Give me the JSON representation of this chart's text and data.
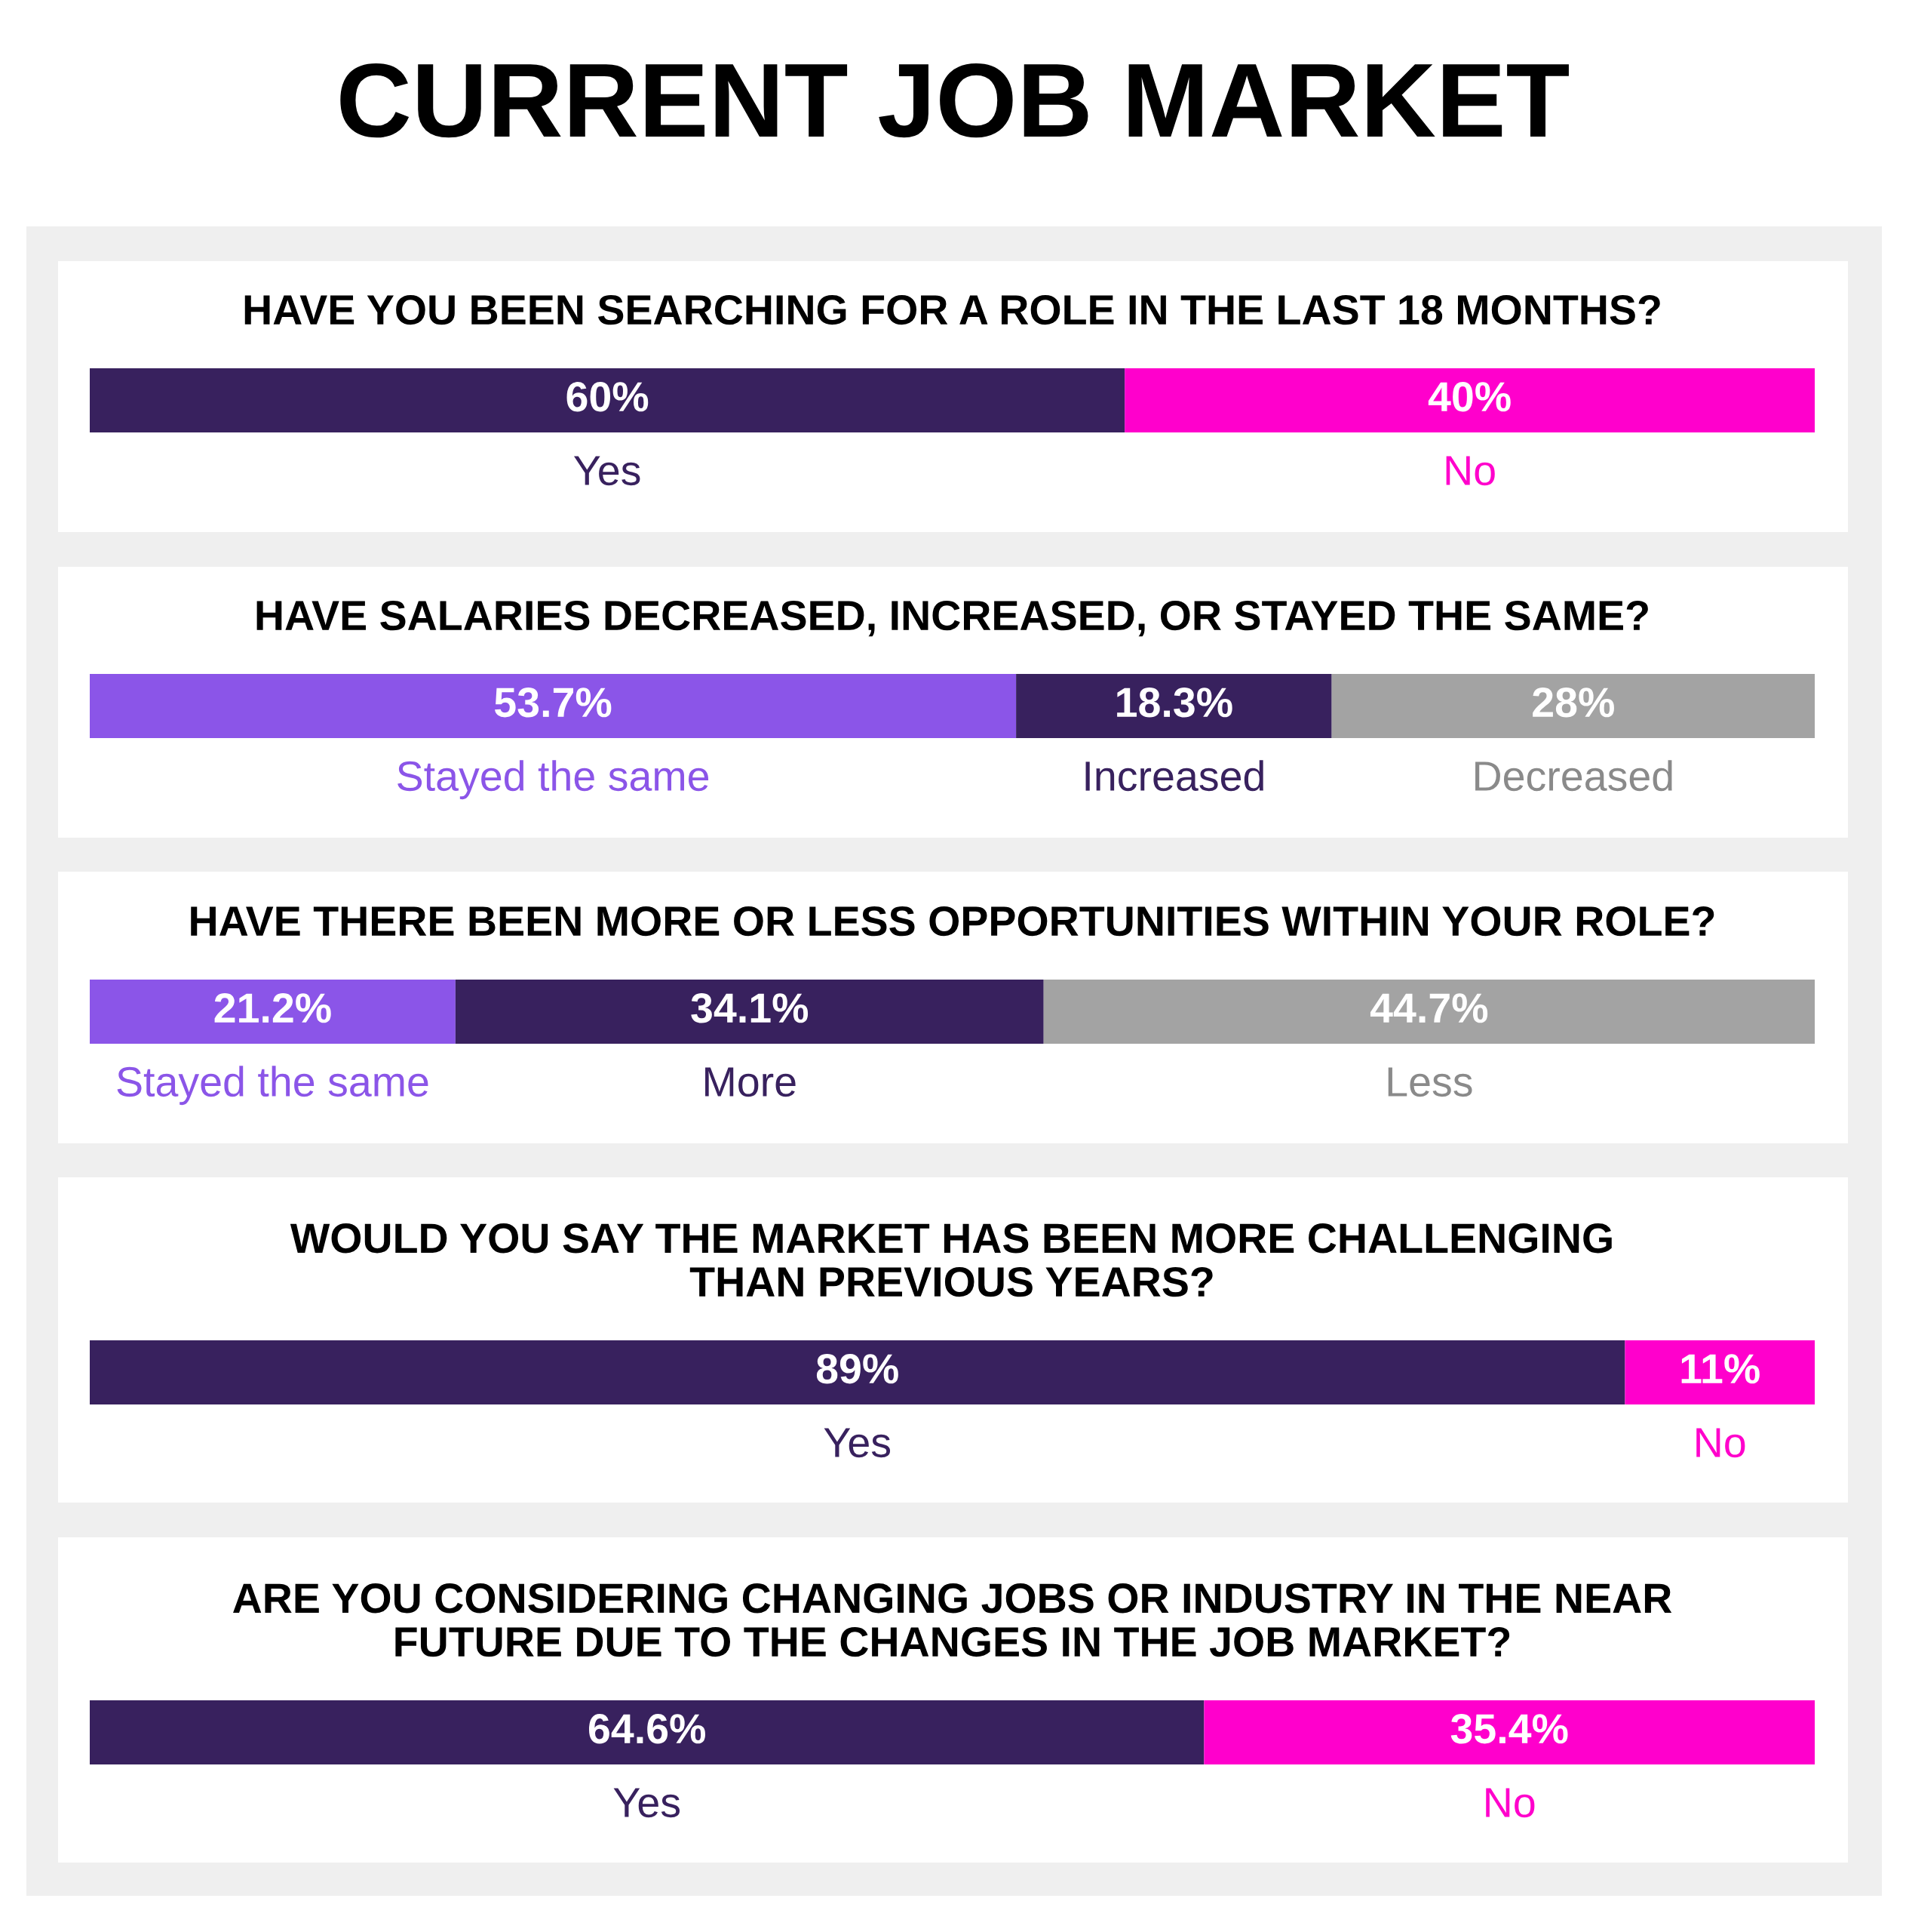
{
  "chart_data": [
    {
      "type": "bar",
      "orientation": "horizontal",
      "stacked": true,
      "tick_labels": false,
      "title": "CURRENT JOB MARKET",
      "subtitle": "HAVE YOU BEEN SEARCHING FOR A ROLE IN THE LAST 18 MONTHS?",
      "categories": [
        null
      ],
      "series": [
        {
          "name": "Yes",
          "color": "#38215e",
          "values": [
            60
          ],
          "value_labels": [
            "60%"
          ]
        },
        {
          "name": "No",
          "color": "#ff00cc",
          "values": [
            40
          ],
          "value_labels": [
            "40%"
          ]
        }
      ]
    },
    {
      "type": "bar",
      "orientation": "horizontal",
      "stacked": true,
      "tick_labels": false,
      "title": "HAVE SALARIES DECREASED, INCREASED, OR STAYED THE SAME?",
      "categories": [
        null
      ],
      "series": [
        {
          "name": "Stayed the same",
          "color": "#8b55e8",
          "values": [
            53.7
          ],
          "value_labels": [
            "53.7%"
          ]
        },
        {
          "name": "Increased",
          "color": "#38215e",
          "values": [
            18.3
          ],
          "value_labels": [
            "18.3%"
          ]
        },
        {
          "name": "Decreased",
          "color": "#a3a3a3",
          "values": [
            28
          ],
          "value_labels": [
            "28%"
          ]
        }
      ]
    },
    {
      "type": "bar",
      "orientation": "horizontal",
      "stacked": true,
      "tick_labels": false,
      "title": "HAVE THERE BEEN MORE OR LESS OPPORTUNITIES WITHIN YOUR ROLE?",
      "categories": [
        null
      ],
      "series": [
        {
          "name": "Stayed the same",
          "color": "#8b55e8",
          "values": [
            21.2
          ],
          "value_labels": [
            "21.2%"
          ]
        },
        {
          "name": "More",
          "color": "#38215e",
          "values": [
            34.1
          ],
          "value_labels": [
            "34.1%"
          ]
        },
        {
          "name": "Less",
          "color": "#a3a3a3",
          "values": [
            44.7
          ],
          "value_labels": [
            "44.7%"
          ]
        }
      ]
    },
    {
      "type": "bar",
      "orientation": "horizontal",
      "stacked": true,
      "tick_labels": false,
      "title": "WOULD YOU SAY THE MARKET HAS BEEN MORE CHALLENGING\nTHAN PREVIOUS YEARS?",
      "categories": [
        null
      ],
      "series": [
        {
          "name": "Yes",
          "color": "#38215e",
          "values": [
            89
          ],
          "value_labels": [
            "89%"
          ]
        },
        {
          "name": "No",
          "color": "#ff00cc",
          "values": [
            11
          ],
          "value_labels": [
            "11%"
          ]
        }
      ]
    },
    {
      "type": "bar",
      "orientation": "horizontal",
      "stacked": true,
      "tick_labels": false,
      "title": "ARE YOU CONSIDERING CHANGING JOBS OR INDUSTRY IN THE NEAR\nFUTURE DUE TO THE CHANGES IN THE JOB MARKET?",
      "categories": [
        null
      ],
      "series": [
        {
          "name": "Yes",
          "color": "#38215e",
          "values": [
            64.6
          ],
          "value_labels": [
            "64.6%"
          ]
        },
        {
          "name": "No",
          "color": "#ff00cc",
          "values": [
            35.4
          ],
          "value_labels": [
            "35.4%"
          ]
        }
      ]
    }
  ]
}
